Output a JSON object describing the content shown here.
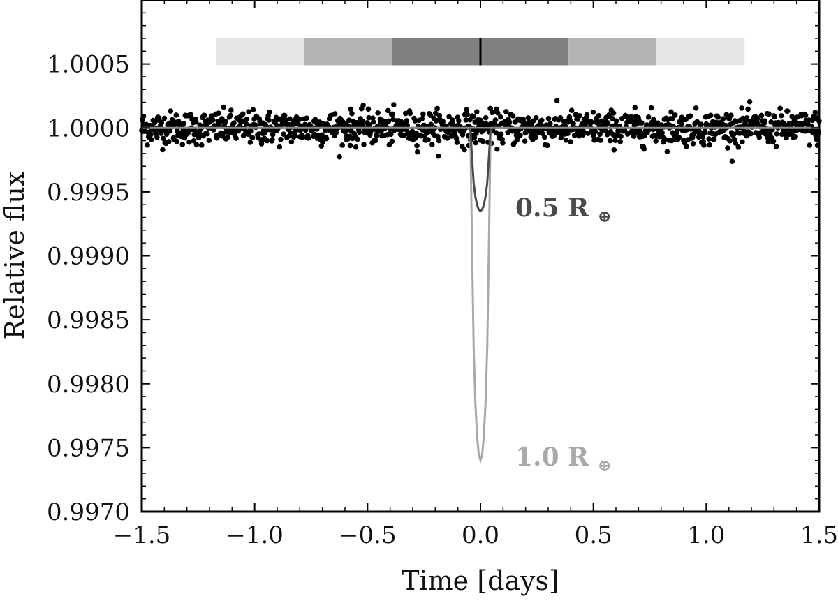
{
  "chart_data": {
    "type": "scatter",
    "xlabel": "Time [days]",
    "ylabel": "Relative flux",
    "xlim": [
      -1.5,
      1.5
    ],
    "ylim": [
      0.997,
      1.001
    ],
    "x_ticks": [
      -1.5,
      -1.0,
      -0.5,
      0.0,
      0.5,
      1.0,
      1.5
    ],
    "x_tick_labels": [
      "−1.5",
      "−1.0",
      "−0.5",
      "0.0",
      "0.5",
      "1.0",
      "1.5"
    ],
    "y_ticks": [
      0.997,
      0.9975,
      0.998,
      0.9985,
      0.999,
      0.9995,
      1.0,
      1.0005
    ],
    "y_tick_labels": [
      "0.9970",
      "0.9975",
      "0.9980",
      "0.9985",
      "0.9990",
      "0.9995",
      "1.0000",
      "1.0005"
    ],
    "grid": false,
    "scatter": {
      "color": "#000000",
      "count": 1200,
      "x_range": [
        -1.5,
        1.5
      ],
      "mean_flux": 1.0,
      "sigma_flux": 6.5e-05
    },
    "transit_models": [
      {
        "label": "0.5 R",
        "subscript": "⊕",
        "color": "#4a4a4a",
        "depth": 0.00065,
        "t_center": 0.0,
        "half_width": 0.04
      },
      {
        "label": "1.0 R",
        "subscript": "⊕",
        "color": "#a9a9a9",
        "depth": 0.0026,
        "t_center": 0.0,
        "half_width": 0.04
      }
    ],
    "baseline": {
      "flux": 1.0,
      "color": "#8c8c8c"
    },
    "shading_bar": {
      "y_range": [
        1.00049,
        1.0007
      ],
      "marker_x": 0.0,
      "segments": [
        {
          "x0": -1.17,
          "x1": -0.78,
          "color": "#e6e6e6"
        },
        {
          "x0": -0.78,
          "x1": -0.39,
          "color": "#b3b3b3"
        },
        {
          "x0": -0.39,
          "x1": 0.0,
          "color": "#808080"
        },
        {
          "x0": 0.0,
          "x1": 0.39,
          "color": "#808080"
        },
        {
          "x0": 0.39,
          "x1": 0.78,
          "color": "#b3b3b3"
        },
        {
          "x0": 0.78,
          "x1": 1.17,
          "color": "#e6e6e6"
        }
      ]
    }
  }
}
